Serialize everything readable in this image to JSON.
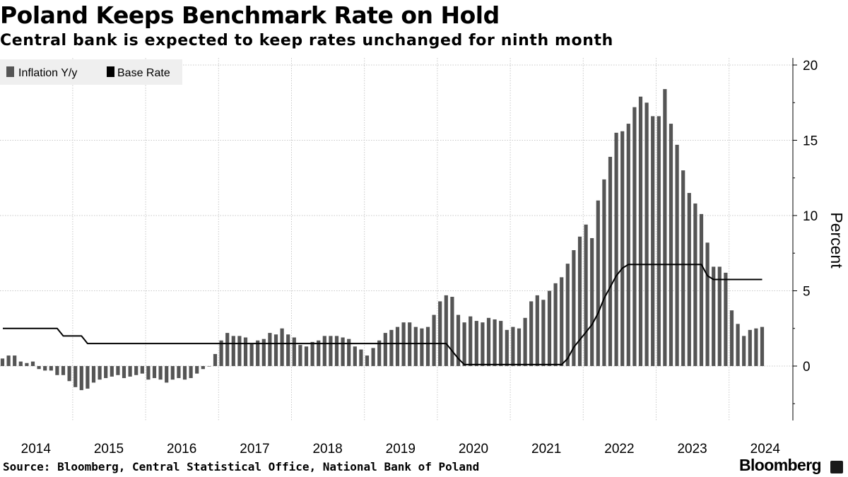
{
  "title": "Poland Keeps Benchmark Rate on Hold",
  "subtitle": "Central bank is expected to keep rates unchanged for ninth month",
  "source": "Source: Bloomberg, Central Statistical Office, National Bank of Poland",
  "brand": "Bloomberg",
  "colors": {
    "inflation": "#555555",
    "base_rate": "#000000",
    "grid": "#c8c8c8",
    "legend_bg": "#efefef"
  },
  "chart_data": {
    "type": "bar+line",
    "ylabel": "Percent",
    "ylim": [
      -3.5,
      20
    ],
    "yticks": [
      0,
      5,
      10,
      15,
      20
    ],
    "x_tick_labels": [
      "2014",
      "2015",
      "2016",
      "2017",
      "2018",
      "2019",
      "2020",
      "2021",
      "2022",
      "2023",
      "2024"
    ],
    "legend": [
      {
        "name": "Inflation Y/y",
        "kind": "bar"
      },
      {
        "name": "Base Rate",
        "kind": "line"
      }
    ],
    "start": "2014-01",
    "series": [
      {
        "name": "Inflation Y/y",
        "kind": "bar",
        "values": [
          0.5,
          0.7,
          0.7,
          0.3,
          0.2,
          0.3,
          -0.2,
          -0.3,
          -0.3,
          -0.6,
          -0.6,
          -1.0,
          -1.4,
          -1.6,
          -1.5,
          -1.1,
          -0.9,
          -0.8,
          -0.7,
          -0.6,
          -0.8,
          -0.7,
          -0.6,
          -0.5,
          -0.9,
          -0.8,
          -0.9,
          -1.1,
          -0.9,
          -0.8,
          -0.9,
          -0.8,
          -0.5,
          -0.2,
          0.0,
          0.8,
          1.7,
          2.2,
          2.0,
          2.0,
          1.9,
          1.5,
          1.7,
          1.8,
          2.2,
          2.1,
          2.5,
          2.1,
          1.9,
          1.4,
          1.3,
          1.6,
          1.7,
          2.0,
          2.0,
          2.0,
          1.9,
          1.8,
          1.3,
          1.1,
          0.7,
          1.2,
          1.7,
          2.2,
          2.4,
          2.6,
          2.9,
          2.9,
          2.6,
          2.5,
          2.6,
          3.4,
          4.3,
          4.7,
          4.6,
          3.4,
          2.9,
          3.3,
          3.0,
          2.9,
          3.2,
          3.1,
          3.0,
          2.4,
          2.6,
          2.5,
          3.2,
          4.3,
          4.7,
          4.4,
          5.0,
          5.5,
          5.9,
          6.8,
          7.7,
          8.6,
          9.4,
          8.5,
          11.0,
          12.4,
          13.9,
          15.5,
          15.6,
          16.1,
          17.2,
          17.9,
          17.5,
          16.6,
          16.6,
          18.4,
          16.1,
          14.7,
          13.0,
          11.5,
          10.8,
          10.1,
          8.2,
          6.6,
          6.6,
          6.2,
          3.7,
          2.8,
          2.0,
          2.4,
          2.5,
          2.6
        ]
      },
      {
        "name": "Base Rate",
        "kind": "line",
        "points": [
          [
            "2014-01",
            2.5
          ],
          [
            "2014-10",
            2.5
          ],
          [
            "2014-11",
            2.0
          ],
          [
            "2015-02",
            2.0
          ],
          [
            "2015-03",
            1.5
          ],
          [
            "2020-02",
            1.5
          ],
          [
            "2020-04",
            0.5
          ],
          [
            "2020-05",
            0.1
          ],
          [
            "2021-09",
            0.1
          ],
          [
            "2021-10",
            0.5
          ],
          [
            "2021-11",
            1.25
          ],
          [
            "2021-12",
            1.75
          ],
          [
            "2022-01",
            2.25
          ],
          [
            "2022-02",
            2.75
          ],
          [
            "2022-03",
            3.5
          ],
          [
            "2022-04",
            4.5
          ],
          [
            "2022-05",
            5.25
          ],
          [
            "2022-06",
            6.0
          ],
          [
            "2022-07",
            6.5
          ],
          [
            "2022-08",
            6.75
          ],
          [
            "2023-08",
            6.75
          ],
          [
            "2023-09",
            6.0
          ],
          [
            "2023-10",
            5.75
          ],
          [
            "2024-06",
            5.75
          ]
        ]
      }
    ]
  }
}
